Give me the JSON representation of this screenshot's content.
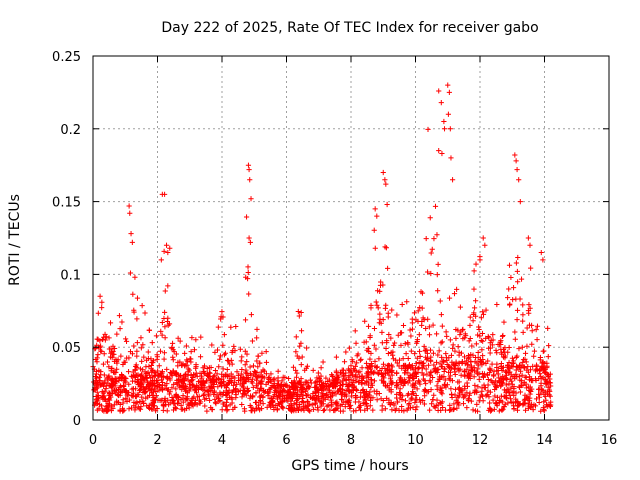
{
  "chart_data": {
    "type": "scatter",
    "title": "Day 222 of 2025, Rate Of TEC Index for receiver gabo",
    "xlabel": "GPS time / hours",
    "ylabel": "ROTI / TECUs",
    "xlim": [
      0,
      16
    ],
    "ylim": [
      0,
      0.25
    ],
    "grid": true,
    "marker": "+",
    "color": "#ff0000",
    "x_ticks": [
      "0",
      "2",
      "4",
      "6",
      "8",
      "10",
      "12",
      "14",
      "16"
    ],
    "y_ticks": [
      "0",
      "0.05",
      "0.1",
      "0.15",
      "0.2",
      "0.25"
    ],
    "series": [
      {
        "name": "ROTI",
        "envelope": {
          "x": [
            0.0,
            0.2,
            0.4,
            0.6,
            0.8,
            1.0,
            1.2,
            1.4,
            1.6,
            1.8,
            2.0,
            2.2,
            2.4,
            2.6,
            2.8,
            3.0,
            3.2,
            3.4,
            3.6,
            3.8,
            4.0,
            4.2,
            4.4,
            4.6,
            4.8,
            5.0,
            5.2,
            5.4,
            5.6,
            5.8,
            6.0,
            6.2,
            6.4,
            6.6,
            6.8,
            7.0,
            7.2,
            7.4,
            7.6,
            7.8,
            8.0,
            8.2,
            8.4,
            8.6,
            8.8,
            9.0,
            9.2,
            9.4,
            9.6,
            9.8,
            10.0,
            10.2,
            10.4,
            10.6,
            10.8,
            11.0,
            11.2,
            11.4,
            11.6,
            11.8,
            12.0,
            12.2,
            12.4,
            12.6,
            12.8,
            13.0,
            13.2,
            13.4,
            13.6,
            13.8,
            14.0,
            14.2
          ],
          "upper": [
            0.075,
            0.09,
            0.105,
            0.07,
            0.09,
            0.06,
            0.147,
            0.1,
            0.08,
            0.06,
            0.07,
            0.155,
            0.12,
            0.07,
            0.06,
            0.06,
            0.065,
            0.06,
            0.06,
            0.05,
            0.088,
            0.06,
            0.09,
            0.06,
            0.175,
            0.075,
            0.06,
            0.05,
            0.04,
            0.035,
            0.03,
            0.04,
            0.09,
            0.065,
            0.04,
            0.04,
            0.045,
            0.045,
            0.05,
            0.05,
            0.055,
            0.07,
            0.08,
            0.13,
            0.145,
            0.17,
            0.1,
            0.09,
            0.09,
            0.09,
            0.12,
            0.16,
            0.225,
            0.23,
            0.16,
            0.1,
            0.09,
            0.1,
            0.095,
            0.125,
            0.13,
            0.095,
            0.09,
            0.095,
            0.08,
            0.16,
            0.182,
            0.13,
            0.12,
            0.1,
            0.07,
            0.065
          ],
          "median": [
            0.018,
            0.022,
            0.02,
            0.018,
            0.018,
            0.02,
            0.025,
            0.02,
            0.02,
            0.02,
            0.022,
            0.025,
            0.022,
            0.02,
            0.02,
            0.02,
            0.02,
            0.02,
            0.02,
            0.018,
            0.02,
            0.02,
            0.022,
            0.022,
            0.025,
            0.022,
            0.02,
            0.018,
            0.016,
            0.015,
            0.014,
            0.014,
            0.018,
            0.016,
            0.015,
            0.016,
            0.016,
            0.017,
            0.018,
            0.018,
            0.02,
            0.022,
            0.022,
            0.025,
            0.028,
            0.03,
            0.025,
            0.024,
            0.025,
            0.025,
            0.028,
            0.03,
            0.035,
            0.035,
            0.03,
            0.028,
            0.026,
            0.026,
            0.025,
            0.028,
            0.03,
            0.026,
            0.025,
            0.025,
            0.024,
            0.028,
            0.03,
            0.028,
            0.026,
            0.025,
            0.022,
            0.02
          ]
        },
        "values": [
          [
            1.12,
            0.147
          ],
          [
            1.14,
            0.142
          ],
          [
            1.18,
            0.128
          ],
          [
            1.22,
            0.122
          ],
          [
            1.3,
            0.098
          ],
          [
            2.15,
            0.155
          ],
          [
            2.22,
            0.155
          ],
          [
            2.28,
            0.12
          ],
          [
            2.32,
            0.115
          ],
          [
            2.38,
            0.118
          ],
          [
            4.82,
            0.175
          ],
          [
            4.84,
            0.172
          ],
          [
            4.86,
            0.165
          ],
          [
            4.9,
            0.152
          ],
          [
            4.84,
            0.125
          ],
          [
            4.88,
            0.122
          ],
          [
            9.0,
            0.17
          ],
          [
            9.05,
            0.165
          ],
          [
            9.08,
            0.162
          ],
          [
            9.12,
            0.148
          ],
          [
            8.75,
            0.145
          ],
          [
            8.8,
            0.14
          ],
          [
            10.72,
            0.226
          ],
          [
            10.8,
            0.218
          ],
          [
            10.88,
            0.205
          ],
          [
            10.9,
            0.2
          ],
          [
            10.72,
            0.185
          ],
          [
            10.82,
            0.183
          ],
          [
            11.0,
            0.23
          ],
          [
            11.05,
            0.225
          ],
          [
            11.02,
            0.21
          ],
          [
            11.08,
            0.2
          ],
          [
            11.1,
            0.18
          ],
          [
            11.15,
            0.165
          ],
          [
            13.08,
            0.182
          ],
          [
            13.12,
            0.178
          ],
          [
            13.15,
            0.172
          ],
          [
            13.2,
            0.165
          ],
          [
            13.25,
            0.15
          ],
          [
            12.1,
            0.125
          ],
          [
            12.15,
            0.12
          ],
          [
            12.0,
            0.11
          ],
          [
            13.5,
            0.125
          ],
          [
            13.55,
            0.12
          ],
          [
            13.9,
            0.115
          ],
          [
            13.95,
            0.11
          ]
        ]
      }
    ]
  }
}
